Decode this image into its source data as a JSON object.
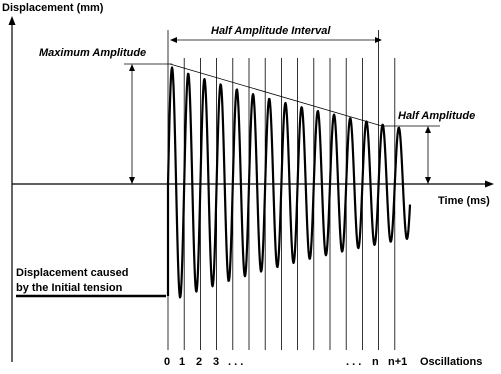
{
  "labels": {
    "y_axis": "Displacement (mm)",
    "x_axis": "Time (ms)",
    "maximum_amplitude": "Maximum Amplitude",
    "half_amplitude_interval": "Half Amplitude Interval",
    "half_amplitude": "Half Amplitude",
    "initial_tension_line1": "Displacement caused",
    "initial_tension_line2": "by the Initial tension",
    "oscillations": "Oscillations"
  },
  "oscillation_index_labels": [
    "0",
    "1",
    "2",
    "3",
    ". . .",
    ". . .",
    "n",
    "n+1"
  ],
  "colors": {
    "ink": "#000000",
    "background": "#ffffff"
  }
}
